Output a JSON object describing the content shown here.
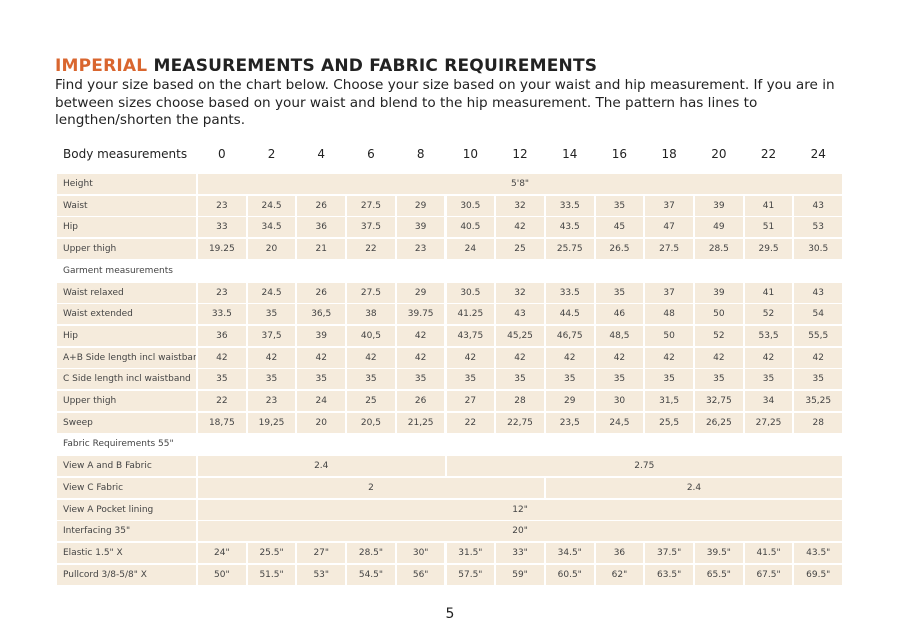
{
  "title": {
    "highlight": "IMPERIAL",
    "rest": "MEASUREMENTS AND FABRIC REQUIREMENTS"
  },
  "intro": "Find your size based on the chart below. Choose your size based on your waist and hip measurement. If you are in between sizes choose based on your waist and blend to the hip measurement. The pattern has lines to lengthen/shorten the pants.",
  "table": {
    "header": [
      "Body measurements",
      "0",
      "2",
      "4",
      "6",
      "8",
      "10",
      "12",
      "14",
      "16",
      "18",
      "20",
      "22",
      "24"
    ],
    "rows": [
      {
        "label": "Height",
        "cells": [
          "5'8\""
        ]
      },
      {
        "label": "Waist",
        "cells": [
          "23",
          "24.5",
          "26",
          "27.5",
          "29",
          "30.5",
          "32",
          "33.5",
          "35",
          "37",
          "39",
          "41",
          "43"
        ]
      },
      {
        "label": "Hip",
        "cells": [
          "33",
          "34.5",
          "36",
          "37.5",
          "39",
          "40.5",
          "42",
          "43.5",
          "45",
          "47",
          "49",
          "51",
          "53"
        ]
      },
      {
        "label": "Upper thigh",
        "cells": [
          "19.25",
          "20",
          "21",
          "22",
          "23",
          "24",
          "25",
          "25.75",
          "26.5",
          "27.5",
          "28.5",
          "29.5",
          "30.5"
        ]
      },
      {
        "label": "Garment measurements"
      },
      {
        "label": "Waist relaxed",
        "cells": [
          "23",
          "24.5",
          "26",
          "27.5",
          "29",
          "30.5",
          "32",
          "33.5",
          "35",
          "37",
          "39",
          "41",
          "43"
        ]
      },
      {
        "label": "Waist extended",
        "cells": [
          "33.5",
          "35",
          "36,5",
          "38",
          "39.75",
          "41.25",
          "43",
          "44.5",
          "46",
          "48",
          "50",
          "52",
          "54"
        ]
      },
      {
        "label": "Hip",
        "cells": [
          "36",
          "37,5",
          "39",
          "40,5",
          "42",
          "43,75",
          "45,25",
          "46,75",
          "48,5",
          "50",
          "52",
          "53,5",
          "55,5"
        ]
      },
      {
        "label": "A+B Side length incl waistband",
        "cells": [
          "42",
          "42",
          "42",
          "42",
          "42",
          "42",
          "42",
          "42",
          "42",
          "42",
          "42",
          "42",
          "42"
        ]
      },
      {
        "label": "C Side length incl waistband",
        "cells": [
          "35",
          "35",
          "35",
          "35",
          "35",
          "35",
          "35",
          "35",
          "35",
          "35",
          "35",
          "35",
          "35"
        ]
      },
      {
        "label": "Upper thigh",
        "cells": [
          "22",
          "23",
          "24",
          "25",
          "26",
          "27",
          "28",
          "29",
          "30",
          "31,5",
          "32,75",
          "34",
          "35,25"
        ]
      },
      {
        "label": "Sweep",
        "cells": [
          "18,75",
          "19,25",
          "20",
          "20,5",
          "21,25",
          "22",
          "22,75",
          "23,5",
          "24,5",
          "25,5",
          "26,25",
          "27,25",
          "28"
        ]
      },
      {
        "label": "Fabric Requirements 55\""
      },
      {
        "label": "View A  and B Fabric",
        "cells": [
          "2.4",
          "2.75"
        ]
      },
      {
        "label": "View C Fabric",
        "cells": [
          "2",
          "2.4"
        ]
      },
      {
        "label": "View A Pocket lining",
        "cells": [
          "12\""
        ]
      },
      {
        "label": "Interfacing 35\"",
        "cells": [
          "20\""
        ]
      },
      {
        "label": "Elastic  1.5\" X",
        "cells": [
          "24\"",
          "25.5\"",
          "27\"",
          "28.5\"",
          "30\"",
          "31.5\"",
          "33\"",
          "34.5\"",
          "36",
          "37.5\"",
          "39.5\"",
          "41.5\"",
          "43.5\""
        ]
      },
      {
        "label": "Pullcord 3/8-5/8\" X",
        "cells": [
          "50\"",
          "51.5\"",
          "53\"",
          "54.5\"",
          "56\"",
          "57.5\"",
          "59\"",
          "60.5\"",
          "62\"",
          "63.5\"",
          "65.5\"",
          "67.5\"",
          "69.5\""
        ]
      }
    ]
  },
  "page_number": "5"
}
